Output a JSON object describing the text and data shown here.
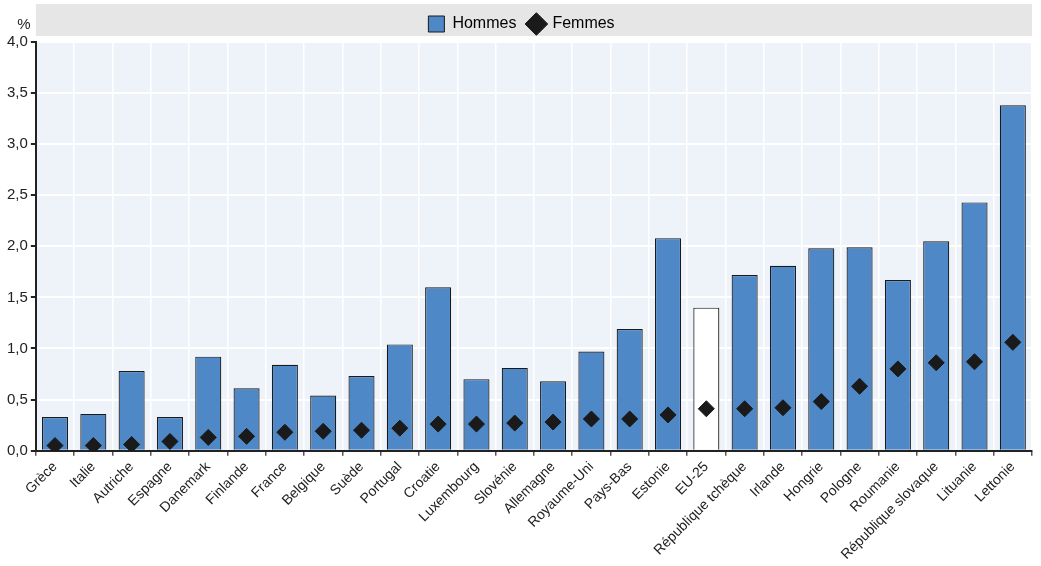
{
  "chart_data": {
    "type": "bar",
    "ylabel": "%",
    "categories": [
      "Grèce",
      "Italie",
      "Autriche",
      "Espagne",
      "Danemark",
      "Finlande",
      "France",
      "Belgique",
      "Suède",
      "Portugal",
      "Croatie",
      "Luxembourg",
      "Slovénie",
      "Allemagne",
      "Royaume-Uni",
      "Pays-Bas",
      "Estonie",
      "EU-25",
      "République tchèque",
      "Irlande",
      "Hongrie",
      "Pologne",
      "Roumanie",
      "République slovaque",
      "Lituanie",
      "Lettonie"
    ],
    "series": [
      {
        "name": "Hommes",
        "color": "#4f88c6",
        "colors": [
          "#4f88c6",
          "#4f88c6",
          "#4f88c6",
          "#4f88c6",
          "#4f88c6",
          "#4f88c6",
          "#4f88c6",
          "#4f88c6",
          "#4f88c6",
          "#4f88c6",
          "#4f88c6",
          "#4f88c6",
          "#4f88c6",
          "#4f88c6",
          "#4f88c6",
          "#4f88c6",
          "#4f88c6",
          "#ffffff",
          "#4f88c6",
          "#4f88c6",
          "#4f88c6",
          "#4f88c6",
          "#4f88c6",
          "#4f88c6",
          "#4f88c6",
          "#4f88c6"
        ],
        "values": [
          0.33,
          0.36,
          0.78,
          0.33,
          0.92,
          0.61,
          0.84,
          0.54,
          0.73,
          1.04,
          1.6,
          0.7,
          0.81,
          0.68,
          0.97,
          1.19,
          2.08,
          1.4,
          1.72,
          1.81,
          1.98,
          1.99,
          1.67,
          2.05,
          2.43,
          3.38
        ]
      },
      {
        "name": "Femmes",
        "type": "scatter",
        "color": "#1a1a1a",
        "marker": "diamond",
        "values": [
          0.05,
          0.05,
          0.06,
          0.09,
          0.13,
          0.14,
          0.18,
          0.19,
          0.2,
          0.22,
          0.26,
          0.26,
          0.27,
          0.28,
          0.31,
          0.31,
          0.35,
          0.41,
          0.41,
          0.42,
          0.48,
          0.63,
          0.8,
          0.86,
          0.87,
          1.06
        ]
      }
    ],
    "ylim": [
      0,
      4
    ],
    "yticks": [
      {
        "value": 0,
        "label": "0,0"
      },
      {
        "value": 0.5,
        "label": "0,5"
      },
      {
        "value": 1,
        "label": "1,0"
      },
      {
        "value": 1.5,
        "label": "1,5"
      },
      {
        "value": 2,
        "label": "2,0"
      },
      {
        "value": 2.5,
        "label": "2,5"
      },
      {
        "value": 3,
        "label": "3,0"
      },
      {
        "value": 3.5,
        "label": "3,5"
      },
      {
        "value": 4,
        "label": "4,0"
      }
    ],
    "grid": true,
    "legend": "top"
  }
}
